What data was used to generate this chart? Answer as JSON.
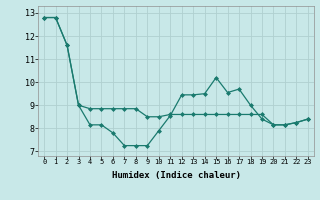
{
  "line1_x": [
    0,
    1,
    2,
    3,
    4,
    5,
    6,
    7,
    8,
    9,
    10,
    11,
    12,
    13,
    14,
    15,
    16,
    17,
    18,
    19,
    20,
    21,
    22,
    23
  ],
  "line1_y": [
    12.8,
    12.8,
    11.6,
    9.0,
    8.15,
    8.15,
    7.8,
    7.25,
    7.25,
    7.25,
    7.9,
    8.55,
    9.45,
    9.45,
    9.5,
    10.2,
    9.55,
    9.7,
    9.0,
    8.4,
    8.15,
    8.15,
    8.25,
    8.4
  ],
  "line2_x": [
    0,
    1,
    2,
    3,
    4,
    5,
    6,
    7,
    8,
    9,
    10,
    11,
    12,
    13,
    14,
    15,
    16,
    17,
    18,
    19,
    20,
    21,
    22,
    23
  ],
  "line2_y": [
    12.8,
    12.8,
    11.6,
    9.0,
    8.85,
    8.85,
    8.85,
    8.85,
    8.85,
    8.5,
    8.5,
    8.6,
    8.6,
    8.6,
    8.6,
    8.6,
    8.6,
    8.6,
    8.6,
    8.6,
    8.15,
    8.15,
    8.25,
    8.4
  ],
  "line_color": "#1a7a6e",
  "bg_color": "#c8e8e8",
  "grid_color": "#b0d0d0",
  "xlabel": "Humidex (Indice chaleur)",
  "ylim": [
    6.8,
    13.3
  ],
  "xlim": [
    -0.5,
    23.5
  ],
  "yticks": [
    7,
    8,
    9,
    10,
    11,
    12,
    13
  ],
  "xticks": [
    0,
    1,
    2,
    3,
    4,
    5,
    6,
    7,
    8,
    9,
    10,
    11,
    12,
    13,
    14,
    15,
    16,
    17,
    18,
    19,
    20,
    21,
    22,
    23
  ],
  "xtick_labels": [
    "0",
    "1",
    "2",
    "3",
    "4",
    "5",
    "6",
    "7",
    "8",
    "9",
    "10",
    "11",
    "12",
    "13",
    "14",
    "15",
    "16",
    "17",
    "18",
    "19",
    "20",
    "21",
    "22",
    "23"
  ]
}
